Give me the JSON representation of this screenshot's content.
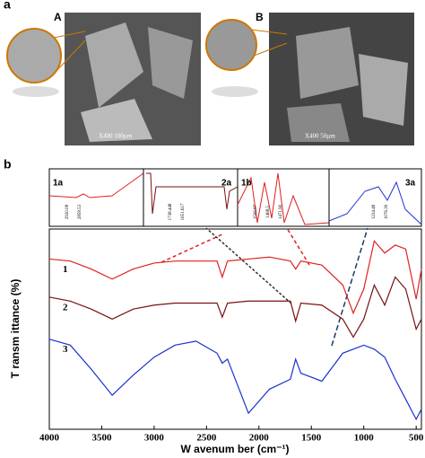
{
  "panel_a": {
    "label": "a",
    "image_a_label": "A",
    "image_b_label": "B",
    "image_a_caption": "X400  100µm",
    "image_b_caption": "X400  50µm"
  },
  "insets": [
    {
      "label": "1a",
      "peaks": [
        "2920.08",
        "2858.53"
      ]
    },
    {
      "label": "2a",
      "peaks": [
        "1738.448",
        "1651.617"
      ]
    },
    {
      "label": "1b",
      "peaks": [
        "1506.87",
        "1468.5",
        "1471.90"
      ]
    },
    {
      "label": "3a",
      "peaks": [
        "1234.48",
        "1076.39"
      ]
    }
  ],
  "chart_data": {
    "type": "line",
    "panel_label": "b",
    "x_label": "W avenum ber (cm⁻¹)",
    "y_label": "T ransm ittance (%)",
    "x": [
      4000,
      3800,
      3600,
      3400,
      3200,
      3000,
      2800,
      2600,
      2400,
      2350,
      2300,
      2100,
      1900,
      1700,
      1650,
      1600,
      1400,
      1200,
      1100,
      1000,
      900,
      800,
      700,
      600,
      500,
      450
    ],
    "xlim": [
      4000,
      450
    ],
    "xticks": [
      4000,
      3500,
      3000,
      2500,
      2000,
      1500,
      1000,
      500
    ],
    "ylim": [
      0,
      100
    ],
    "series": [
      {
        "name": "1",
        "color": "#e02020",
        "values": [
          85,
          84,
          80,
          75,
          80,
          83,
          84,
          84,
          84,
          76,
          84,
          85,
          86,
          84,
          80,
          84,
          82,
          72,
          58,
          70,
          94,
          88,
          92,
          90,
          65,
          80
        ]
      },
      {
        "name": "2",
        "color": "#7a1010",
        "values": [
          66,
          64,
          60,
          55,
          60,
          62,
          63,
          63,
          63,
          56,
          63,
          64,
          64,
          64,
          54,
          63,
          62,
          55,
          46,
          55,
          72,
          62,
          76,
          70,
          50,
          55
        ]
      },
      {
        "name": "3",
        "color": "#1a2fd0",
        "values": [
          45,
          42,
          30,
          17,
          27,
          36,
          42,
          44,
          38,
          33,
          35,
          8,
          20,
          25,
          35,
          28,
          24,
          38,
          40,
          42,
          40,
          36,
          25,
          15,
          5,
          10
        ]
      }
    ]
  }
}
